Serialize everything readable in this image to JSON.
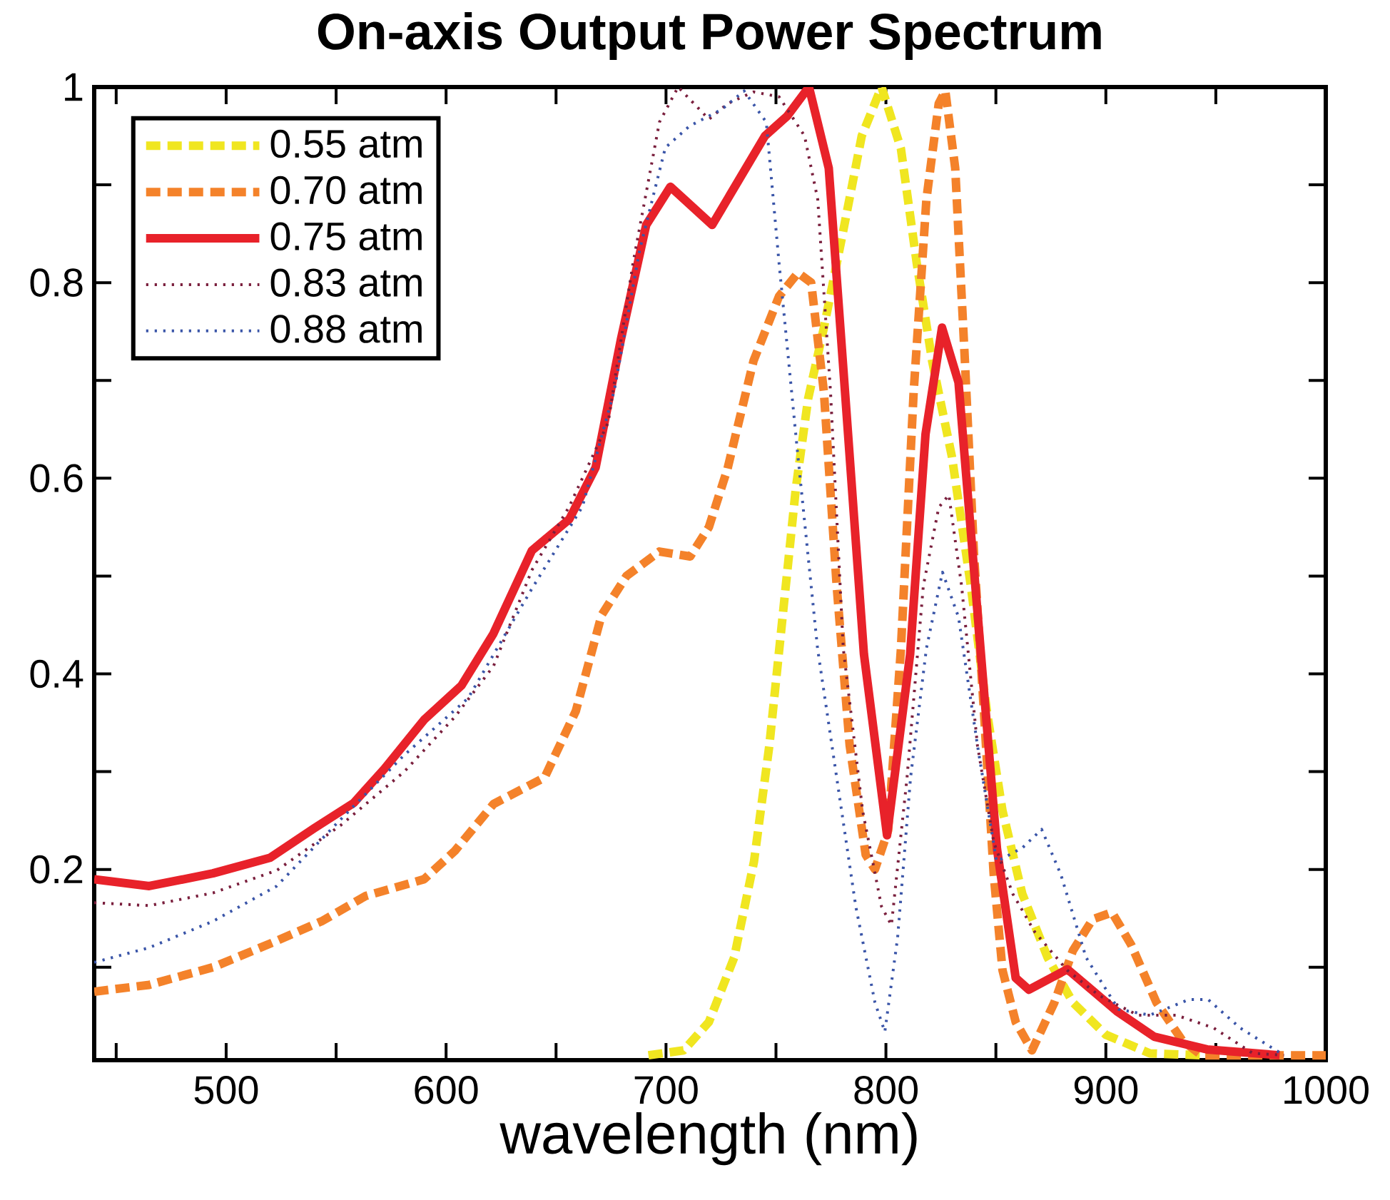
{
  "chart_data": {
    "type": "line",
    "title": "On-axis Output Power Spectrum",
    "xlabel": "wavelength (nm)",
    "xlim": [
      440,
      1000
    ],
    "ylim": [
      0.005,
      1
    ],
    "xticks": [
      {
        "value": 450,
        "label": null
      },
      500,
      {
        "value": 550,
        "label": null
      },
      600,
      {
        "value": 650,
        "label": null
      },
      700,
      {
        "value": 750,
        "label": null
      },
      800,
      {
        "value": 850,
        "label": null
      },
      900,
      {
        "value": 950,
        "label": null
      },
      1000
    ],
    "yticks": [
      {
        "value": 0.1,
        "label": null
      },
      0.2,
      {
        "value": 0.3,
        "label": null
      },
      0.4,
      {
        "value": 0.5,
        "label": null
      },
      0.6,
      {
        "value": 0.7,
        "label": null
      },
      0.8,
      {
        "value": 0.9,
        "label": null
      },
      1
    ],
    "legend": "top left",
    "series": [
      {
        "name": "0.55 atm",
        "color": "#f0e620",
        "line_style": "dashed",
        "x": [
          692,
          708,
          719.5,
          731,
          740,
          747,
          753,
          759,
          764.6,
          771.8,
          780.5,
          789,
          798,
          806.8,
          814,
          821,
          830,
          838.6,
          846,
          853,
          862,
          873.5,
          885,
          900,
          920,
          943
        ],
        "values": [
          0.01,
          0.015,
          0.044,
          0.11,
          0.208,
          0.327,
          0.458,
          0.589,
          0.681,
          0.754,
          0.852,
          0.95,
          1.0,
          0.937,
          0.82,
          0.72,
          0.622,
          0.49,
          0.36,
          0.26,
          0.175,
          0.11,
          0.064,
          0.031,
          0.012,
          0.01
        ]
      },
      {
        "name": "0.70 atm",
        "color": "#f4822a",
        "line_style": "dashed",
        "x": [
          440,
          465,
          494,
          523,
          543.4,
          563.5,
          590,
          604,
          621.6,
          644.8,
          659,
          670.7,
          682,
          697,
          711,
          719.5,
          728,
          739.8,
          751.4,
          760,
          766,
          771.8,
          777.6,
          783.5,
          790.8,
          795,
          801,
          806.8,
          812.6,
          818.4,
          824,
          827,
          831.5,
          835.9,
          840,
          844.6,
          849,
          853,
          859,
          866.4,
          876.6,
          885,
          894,
          902.8,
          911.5,
          923,
          934.8,
          943.5,
          1000
        ],
        "values": [
          0.075,
          0.082,
          0.1,
          0.127,
          0.147,
          0.173,
          0.19,
          0.219,
          0.267,
          0.294,
          0.362,
          0.46,
          0.5,
          0.525,
          0.52,
          0.55,
          0.61,
          0.72,
          0.786,
          0.81,
          0.8,
          0.688,
          0.49,
          0.327,
          0.215,
          0.2,
          0.24,
          0.425,
          0.688,
          0.885,
          0.983,
          0.996,
          0.917,
          0.72,
          0.524,
          0.36,
          0.195,
          0.097,
          0.044,
          0.015,
          0.064,
          0.117,
          0.149,
          0.156,
          0.123,
          0.064,
          0.025,
          0.01,
          0.01
        ]
      },
      {
        "name": "0.75 atm",
        "color": "#e8222a",
        "line_style": "solid",
        "x": [
          440,
          465,
          494,
          520,
          540,
          558,
          572,
          590,
          607,
          621.5,
          639,
          656,
          668,
          679.5,
          691,
          702,
          721,
          745,
          755,
          765,
          774,
          781.5,
          790,
          800.5,
          811,
          818,
          825.5,
          833,
          842,
          850.5,
          859,
          865,
          882.5,
          905,
          922,
          946,
          979
        ],
        "values": [
          0.19,
          0.183,
          0.196,
          0.212,
          0.242,
          0.268,
          0.303,
          0.353,
          0.388,
          0.441,
          0.526,
          0.558,
          0.611,
          0.742,
          0.859,
          0.898,
          0.859,
          0.95,
          0.97,
          1.0,
          0.917,
          0.685,
          0.42,
          0.235,
          0.42,
          0.645,
          0.754,
          0.698,
          0.453,
          0.221,
          0.089,
          0.077,
          0.098,
          0.055,
          0.029,
          0.016,
          0.01
        ]
      },
      {
        "name": "0.83 atm",
        "color": "#7a1f3d",
        "line_style": "dotted",
        "x": [
          440,
          465,
          494,
          523,
          552,
          581,
          604,
          621.6,
          639,
          656,
          673.7,
          685,
          697,
          705.5,
          719.5,
          728,
          739.8,
          751.4,
          763,
          769,
          774.8,
          780.6,
          789.4,
          798,
          802.5,
          809.6,
          817,
          824,
          828.6,
          834.4,
          841.6,
          849,
          857.7,
          867.7,
          882.4,
          897,
          914.5,
          932,
          949,
          966.8,
          981
        ],
        "values": [
          0.166,
          0.163,
          0.176,
          0.199,
          0.245,
          0.3,
          0.356,
          0.408,
          0.506,
          0.571,
          0.657,
          0.82,
          0.964,
          1.0,
          0.967,
          0.983,
          0.995,
          0.99,
          0.95,
          0.885,
          0.688,
          0.426,
          0.26,
          0.162,
          0.143,
          0.294,
          0.49,
          0.57,
          0.583,
          0.49,
          0.327,
          0.228,
          0.175,
          0.136,
          0.097,
          0.071,
          0.051,
          0.051,
          0.038,
          0.012,
          0.01
        ]
      },
      {
        "name": "0.88 atm",
        "color": "#3a55a8",
        "line_style": "dotted",
        "x": [
          440,
          465,
          494,
          523,
          552,
          581,
          610,
          639,
          662,
          676.5,
          688,
          699.7,
          710.7,
          725.3,
          735.5,
          745.6,
          751.4,
          760,
          768.9,
          777.6,
          786.3,
          795,
          799.5,
          805.3,
          811.2,
          818.4,
          825.7,
          833,
          841.6,
          850.3,
          862,
          870.8,
          879.5,
          891,
          905.7,
          920,
          937.8,
          946.5,
          961,
          981
        ],
        "values": [
          0.105,
          0.12,
          0.147,
          0.183,
          0.251,
          0.317,
          0.375,
          0.487,
          0.571,
          0.69,
          0.833,
          0.938,
          0.96,
          0.977,
          0.996,
          0.964,
          0.82,
          0.622,
          0.426,
          0.294,
          0.162,
          0.064,
          0.034,
          0.13,
          0.294,
          0.426,
          0.504,
          0.458,
          0.327,
          0.208,
          0.222,
          0.241,
          0.195,
          0.11,
          0.057,
          0.051,
          0.067,
          0.067,
          0.038,
          0.01
        ]
      }
    ]
  }
}
